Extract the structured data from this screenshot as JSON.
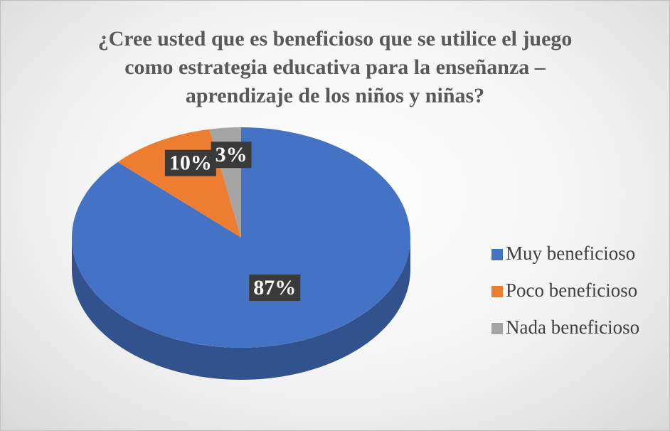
{
  "chart_data": {
    "type": "pie",
    "title": "¿Cree usted que es beneficioso que se utilice el juego como estrategia educativa para la enseñanza – aprendizaje de los niños y niñas?",
    "categories": [
      "Muy beneficioso",
      "Poco beneficioso",
      "Nada beneficioso"
    ],
    "values": [
      87,
      10,
      3
    ],
    "value_labels": [
      "87%",
      "10%",
      "3%"
    ],
    "colors": [
      "#4472c4",
      "#ed7d31",
      "#a5a5a5"
    ],
    "legend": "right"
  }
}
